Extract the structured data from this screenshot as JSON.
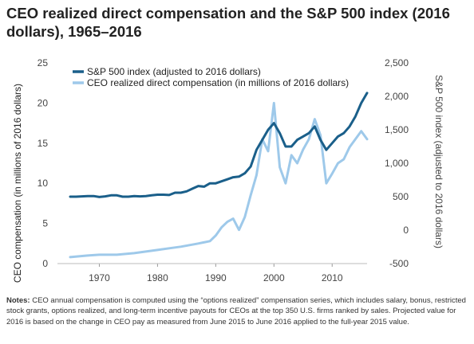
{
  "chart_data": {
    "type": "line",
    "title": "CEO realized direct compensation and the S&P 500 index (2016 dollars), 1965–2016",
    "ylabel_left": "CEO compensation (in millions of 2016 dollars)",
    "ylabel_right": "S&P 500 index (adjusted to 2016 dollars)",
    "xticks": [
      "1970",
      "1980",
      "1990",
      "2000",
      "2010"
    ],
    "xlim": [
      1965,
      2016
    ],
    "yticks_left": [
      "0",
      "5",
      "10",
      "15",
      "20",
      "25"
    ],
    "ylim_left": [
      0,
      25
    ],
    "yticks_right": [
      "-500",
      "0",
      "500",
      "1,000",
      "1,500",
      "2,000",
      "2,500"
    ],
    "ylim_right": [
      -500,
      2500
    ],
    "grid": false,
    "legend_position": "top-left",
    "colors": {
      "sp500": "#1a5f8a",
      "ceo": "#9ec9ea"
    },
    "series": [
      {
        "name": "S&P 500 index (adjusted to 2016 dollars)",
        "axis": "right",
        "color": "#1a5f8a",
        "x": [
          1965,
          1966,
          1967,
          1968,
          1969,
          1970,
          1971,
          1972,
          1973,
          1974,
          1975,
          1976,
          1977,
          1978,
          1979,
          1980,
          1981,
          1982,
          1983,
          1984,
          1985,
          1986,
          1987,
          1988,
          1989,
          1990,
          1991,
          1992,
          1993,
          1994,
          1995,
          1996,
          1997,
          1998,
          1999,
          2000,
          2001,
          2002,
          2003,
          2004,
          2005,
          2006,
          2007,
          2008,
          2009,
          2010,
          2011,
          2012,
          2013,
          2014,
          2015,
          2016
        ],
        "values": [
          500,
          500,
          505,
          510,
          510,
          495,
          505,
          520,
          520,
          500,
          500,
          510,
          505,
          510,
          520,
          530,
          530,
          525,
          560,
          560,
          580,
          620,
          660,
          650,
          700,
          700,
          730,
          760,
          790,
          800,
          850,
          950,
          1200,
          1350,
          1500,
          1600,
          1450,
          1250,
          1250,
          1350,
          1400,
          1450,
          1550,
          1350,
          1200,
          1300,
          1400,
          1450,
          1550,
          1700,
          1900,
          2050
        ]
      },
      {
        "name": "CEO realized direct compensation (in millions of 2016 dollars)",
        "axis": "left",
        "color": "#9ec9ea",
        "x": [
          1965,
          1968,
          1970,
          1973,
          1976,
          1978,
          1979,
          1980,
          1982,
          1984,
          1987,
          1989,
          1990,
          1991,
          1992,
          1993,
          1994,
          1995,
          1996,
          1997,
          1998,
          1999,
          2000,
          2001,
          2002,
          2003,
          2004,
          2005,
          2006,
          2007,
          2008,
          2009,
          2010,
          2011,
          2012,
          2013,
          2014,
          2015,
          2016
        ],
        "values": [
          0.8,
          1.0,
          1.1,
          1.1,
          1.3,
          1.5,
          1.6,
          1.7,
          1.9,
          2.1,
          2.5,
          2.8,
          3.5,
          4.5,
          5.2,
          5.6,
          4.2,
          5.8,
          8.5,
          11.0,
          15.5,
          14.0,
          20.0,
          12.0,
          10.0,
          13.5,
          12.5,
          14.2,
          15.5,
          18.0,
          16.0,
          10.0,
          11.2,
          12.5,
          13.0,
          14.5,
          15.5,
          16.5,
          15.5
        ]
      }
    ]
  },
  "notes": {
    "label": "Notes:",
    "text": " CEO annual compensation is computed using the “options realized” compensation series, which includes salary, bonus, restricted stock grants, options realized, and long-term incentive payouts for CEOs at the top 350 U.S. firms ranked by sales. Projected value for 2016 is based on the change in CEO pay as measured from June 2015 to June 2016 applied to the full-year 2015 value."
  }
}
